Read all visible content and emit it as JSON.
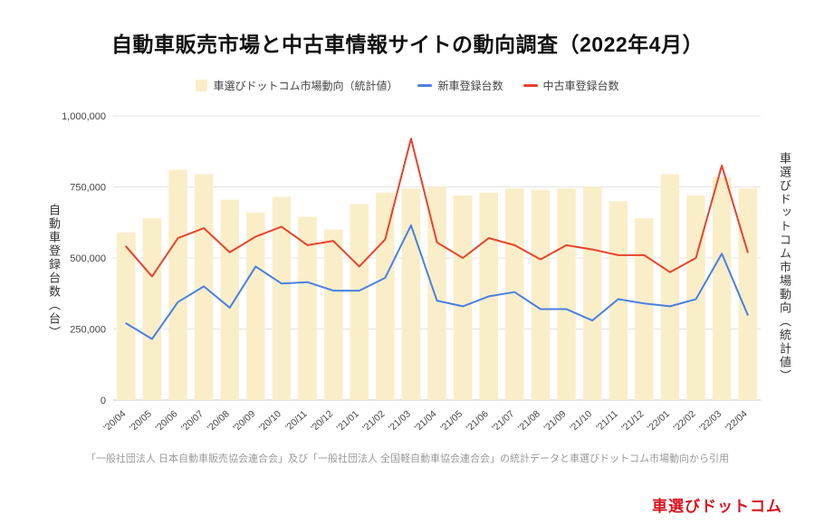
{
  "chart_data": {
    "type": "bar+line",
    "title": "自動車販売市場と中古車情報サイトの動向調査（2022年4月）",
    "categories": [
      "'20/04",
      "'20/05",
      "'20/06",
      "'20/07",
      "'20/08",
      "'20/09",
      "'20/10",
      "'20/11",
      "'20/12",
      "'21/01",
      "'21/02",
      "'21/03",
      "'21/04",
      "'21/05",
      "'21/06",
      "'21/07",
      "'21/08",
      "'21/09",
      "'21/10",
      "'21/11",
      "'21/12",
      "'22/01",
      "'22/02",
      "'22/03",
      "'22/04"
    ],
    "series": [
      {
        "name": "車選びドットコム市場動向（統計値）",
        "type": "bar",
        "color": "#faeec9",
        "values": [
          590000,
          640000,
          810000,
          795000,
          705000,
          660000,
          715000,
          645000,
          600000,
          690000,
          730000,
          745000,
          750000,
          720000,
          730000,
          745000,
          740000,
          745000,
          750000,
          700000,
          640000,
          795000,
          720000,
          785000,
          745000
        ]
      },
      {
        "name": "新車登録台数",
        "type": "line",
        "color": "#4a80e4",
        "values": [
          270000,
          215000,
          345000,
          400000,
          325000,
          470000,
          410000,
          415000,
          385000,
          385000,
          430000,
          615000,
          350000,
          330000,
          365000,
          380000,
          320000,
          320000,
          280000,
          355000,
          340000,
          330000,
          355000,
          515000,
          300000
        ]
      },
      {
        "name": "中古車登録台数",
        "type": "line",
        "color": "#e8432c",
        "values": [
          540000,
          435000,
          570000,
          605000,
          520000,
          575000,
          610000,
          545000,
          560000,
          470000,
          565000,
          920000,
          555000,
          500000,
          570000,
          545000,
          495000,
          545000,
          530000,
          510000,
          510000,
          450000,
          500000,
          825000,
          520000
        ]
      }
    ],
    "ylabel_left": "自動車登録台数（台）",
    "ylabel_right": "車選びドットコム市場動向（統計値）",
    "ylim": [
      0,
      1000000
    ],
    "yticks": [
      0,
      250000,
      500000,
      750000,
      1000000
    ],
    "grid": true,
    "legend_position": "top"
  },
  "footer": {
    "note": "「一般社団法人 日本自動車販売協会連合会」及び「一般社団法人 全国軽自動車協会連合会」の統計データと車選びドットコム市場動向から引用",
    "logo": "車選びドットコム"
  }
}
